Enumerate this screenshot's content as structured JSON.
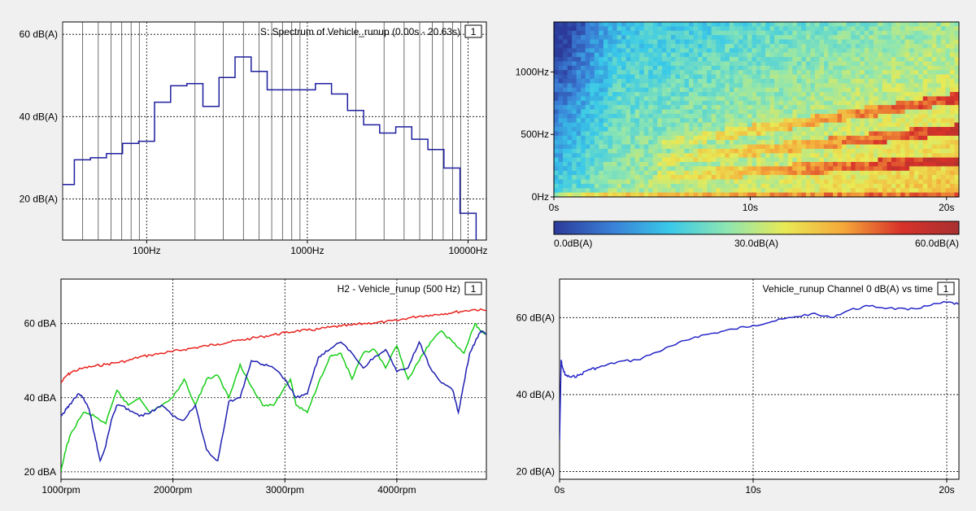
{
  "charts": [
    {
      "id": "spectrum",
      "type": "line",
      "title": "S: Spectrum of Vehicle_runup (0.00s - 20.63s)",
      "badge": "1",
      "x_scale": "log",
      "xlim": [
        30,
        13000
      ],
      "ylim": [
        10,
        63
      ],
      "x_ticks": [
        {
          "value": 100,
          "label": "100Hz"
        },
        {
          "value": 1000,
          "label": "1000Hz"
        },
        {
          "value": 10000,
          "label": "10000Hz"
        }
      ],
      "y_ticks": [
        {
          "value": 20,
          "label": "20 dB(A)"
        },
        {
          "value": 40,
          "label": "40 dB(A)"
        },
        {
          "value": 60,
          "label": "60 dB(A)"
        }
      ],
      "grid": true,
      "series": [
        {
          "color": "#1f1f9f",
          "step_edges": [
            30,
            35.5,
            44.7,
            56.2,
            70.8,
            89.1,
            112,
            141,
            178,
            224,
            282,
            355,
            447,
            562,
            708,
            891,
            1122,
            1413,
            1778,
            2239,
            2818,
            3548,
            4467,
            5623,
            7079,
            8913,
            11220,
            12500
          ],
          "values": [
            23.5,
            29.5,
            30,
            31,
            33.5,
            34,
            43.5,
            47.5,
            48,
            42.5,
            49.5,
            54.5,
            51,
            46.5,
            46.5,
            46.5,
            48,
            45.5,
            41.5,
            38,
            36,
            37.5,
            34.5,
            32,
            27.5,
            16.5,
            7
          ]
        }
      ]
    },
    {
      "id": "spectrogram",
      "type": "heatmap",
      "x_ticks": [
        {
          "value": 0,
          "label": "0s"
        },
        {
          "value": 10,
          "label": "10s"
        },
        {
          "value": 20,
          "label": "20s"
        }
      ],
      "y_ticks": [
        {
          "value": 0,
          "label": "0Hz"
        },
        {
          "value": 500,
          "label": "500Hz"
        },
        {
          "value": 1000,
          "label": "1000Hz"
        }
      ],
      "xlim": [
        0,
        20.63
      ],
      "ylim": [
        0,
        1400
      ],
      "colorbar": {
        "min": 0,
        "max": 60,
        "labels": [
          {
            "value": 0,
            "label": "0.0dB(A)"
          },
          {
            "value": 30,
            "label": "30.0dB(A)"
          },
          {
            "value": 60,
            "label": "60.0dB(A)"
          }
        ],
        "colors": [
          "#2c3a9a",
          "#3a7fd6",
          "#39c9e9",
          "#8fe6b0",
          "#e9ea55",
          "#f5a83a",
          "#d8322a",
          "#a83030"
        ]
      }
    },
    {
      "id": "order-tracks",
      "type": "line",
      "title": "H2 - Vehicle_runup (500 Hz)",
      "badge": "1",
      "xlim": [
        1000,
        4800
      ],
      "ylim": [
        18,
        72
      ],
      "x_ticks": [
        {
          "value": 1000,
          "label": "1000rpm"
        },
        {
          "value": 2000,
          "label": "2000rpm"
        },
        {
          "value": 3000,
          "label": "3000rpm"
        },
        {
          "value": 4000,
          "label": "4000rpm"
        }
      ],
      "y_ticks": [
        {
          "value": 20,
          "label": "20 dBA"
        },
        {
          "value": 40,
          "label": "40 dBA"
        },
        {
          "value": 60,
          "label": "60 dBA"
        }
      ],
      "grid": true,
      "series": [
        {
          "color": "#e8231e",
          "x": [
            1000,
            1050,
            1100,
            1200,
            1300,
            1400,
            1500,
            1600,
            1700,
            1800,
            1900,
            2000,
            2100,
            2200,
            2300,
            2400,
            2500,
            2600,
            2700,
            2800,
            2900,
            3000,
            3100,
            3200,
            3300,
            3400,
            3500,
            3600,
            3700,
            3800,
            3900,
            4000,
            4100,
            4200,
            4300,
            4400,
            4500,
            4600,
            4700,
            4800
          ],
          "y": [
            44,
            46,
            47,
            48,
            48.5,
            49,
            49.5,
            50,
            51,
            51.5,
            52,
            52.5,
            53,
            53.5,
            54,
            54.5,
            55,
            55.5,
            56,
            56.5,
            57,
            57.5,
            58,
            58.2,
            58.5,
            59,
            59.3,
            59.6,
            60,
            60.2,
            60.5,
            60.8,
            61.5,
            62,
            62.3,
            62.6,
            63,
            63.4,
            63.8,
            63.5
          ]
        },
        {
          "color": "#18cd18",
          "x": [
            1000,
            1050,
            1100,
            1200,
            1300,
            1400,
            1500,
            1600,
            1700,
            1800,
            1900,
            2000,
            2100,
            2200,
            2300,
            2400,
            2500,
            2600,
            2700,
            2800,
            2900,
            3000,
            3050,
            3100,
            3200,
            3300,
            3400,
            3500,
            3600,
            3700,
            3800,
            3900,
            4000,
            4100,
            4200,
            4300,
            4400,
            4500,
            4600,
            4700,
            4750,
            4800
          ],
          "y": [
            20,
            27,
            31,
            36,
            35,
            33,
            42,
            38,
            40,
            36,
            38,
            40,
            45,
            38,
            45,
            46,
            40,
            49,
            43,
            38,
            38,
            43,
            45,
            38,
            36,
            44,
            51,
            52,
            45,
            52,
            53,
            48,
            54,
            45,
            50,
            55,
            58,
            55,
            52,
            60,
            58,
            57
          ]
        },
        {
          "color": "#1f1fb0",
          "x": [
            1000,
            1050,
            1100,
            1150,
            1200,
            1250,
            1300,
            1350,
            1400,
            1450,
            1500,
            1600,
            1700,
            1800,
            1900,
            2000,
            2100,
            2200,
            2300,
            2400,
            2500,
            2600,
            2700,
            2800,
            2900,
            3000,
            3100,
            3200,
            3300,
            3400,
            3500,
            3600,
            3700,
            3800,
            3900,
            4000,
            4100,
            4200,
            4300,
            4400,
            4500,
            4550,
            4600,
            4650,
            4700,
            4750,
            4800
          ],
          "y": [
            35,
            37,
            39,
            41,
            40,
            37,
            30,
            23,
            27,
            34,
            38,
            37,
            35,
            36,
            38,
            35,
            34,
            38,
            26,
            23,
            39,
            40,
            50,
            49,
            48,
            45,
            40,
            41,
            51,
            53,
            55,
            52,
            48,
            51,
            53,
            47,
            48,
            55,
            48,
            44,
            42,
            36,
            44,
            52,
            55,
            58,
            57
          ]
        }
      ]
    },
    {
      "id": "level-vs-time",
      "type": "line",
      "title": "Vehicle_runup Channel 0 dB(A) vs time",
      "badge": "1",
      "xlim": [
        0,
        20.63
      ],
      "ylim": [
        18,
        70
      ],
      "x_ticks": [
        {
          "value": 0,
          "label": "0s"
        },
        {
          "value": 10,
          "label": "10s"
        },
        {
          "value": 20,
          "label": "20s"
        }
      ],
      "y_ticks": [
        {
          "value": 20,
          "label": "20 dB(A)"
        },
        {
          "value": 40,
          "label": "40 dB(A)"
        },
        {
          "value": 60,
          "label": "60 dB(A)"
        }
      ],
      "grid": true,
      "series": [
        {
          "color": "#2424c8",
          "x": [
            0,
            0.08,
            0.15,
            0.3,
            0.6,
            1,
            1.5,
            2,
            3,
            4,
            5,
            6,
            7,
            8,
            9,
            10,
            11,
            12,
            13,
            14,
            15,
            16,
            17,
            18,
            19,
            20,
            20.6
          ],
          "y": [
            28,
            49,
            47,
            45,
            44.5,
            45,
            46.5,
            47,
            48.5,
            49,
            51,
            53,
            55,
            56,
            57,
            58,
            59,
            60,
            61,
            60,
            62,
            63,
            62.5,
            62,
            63,
            64,
            63.5
          ]
        }
      ]
    }
  ]
}
